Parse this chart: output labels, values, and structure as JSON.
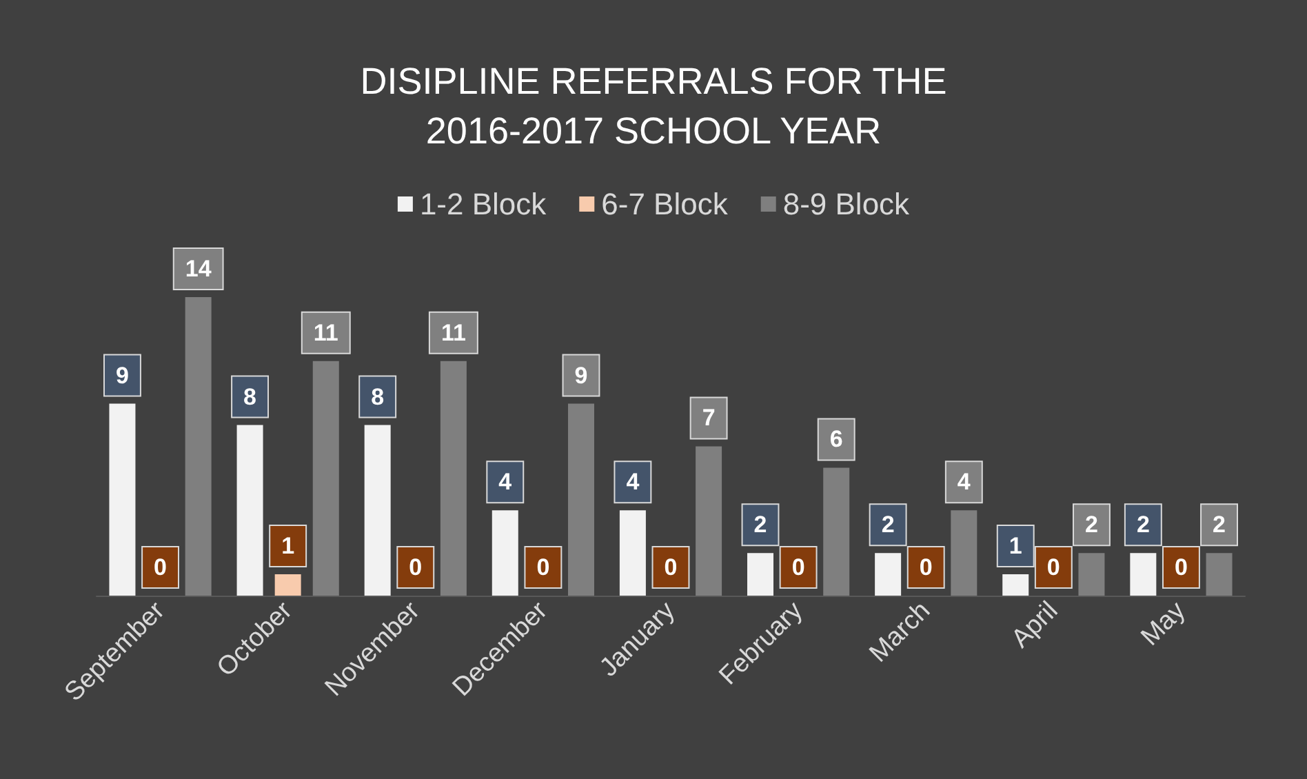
{
  "chart_data": {
    "type": "bar",
    "title": "DISIPLINE REFERRALS FOR THE\n2016-2017 SCHOOL YEAR",
    "categories": [
      "September",
      "October",
      "November",
      "December",
      "January",
      "February",
      "March",
      "April",
      "May"
    ],
    "series": [
      {
        "name": "1-2 Block",
        "color": "#f2f2f2",
        "values": [
          9,
          8,
          8,
          4,
          4,
          2,
          2,
          1,
          2
        ]
      },
      {
        "name": "6-7 Block",
        "color": "#f8cbad",
        "values": [
          0,
          1,
          0,
          0,
          0,
          0,
          0,
          0,
          0
        ]
      },
      {
        "name": "8-9 Block",
        "color": "#7f7f7f",
        "values": [
          14,
          11,
          11,
          9,
          7,
          6,
          4,
          2,
          2
        ]
      }
    ],
    "data_labels": true,
    "legend": "top"
  }
}
